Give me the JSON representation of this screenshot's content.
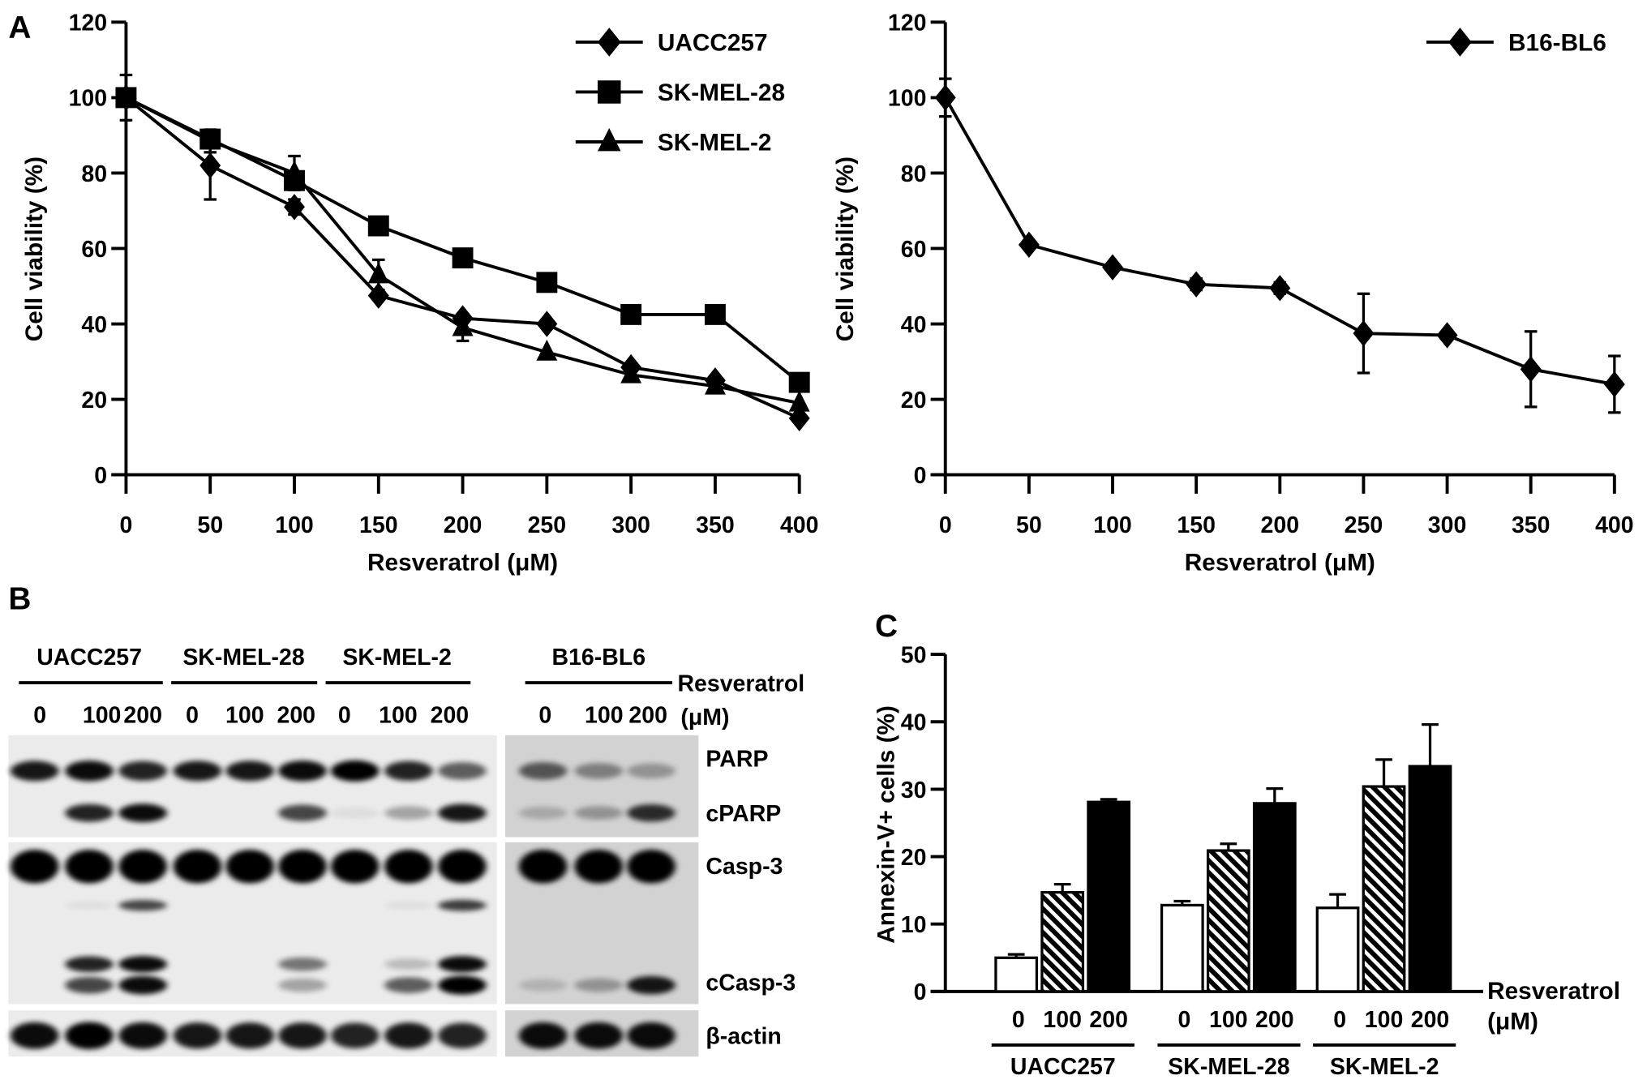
{
  "panels": {
    "a": "A",
    "b": "B",
    "c": "C"
  },
  "chart_data": [
    {
      "type": "line",
      "x": [
        0,
        50,
        100,
        150,
        200,
        250,
        300,
        350,
        400
      ],
      "xlabel": "Resveratrol (μM)",
      "ylabel": "Cell viability (%)",
      "xlim": [
        0,
        400
      ],
      "ylim": [
        0,
        120
      ],
      "yticks": [
        0,
        20,
        40,
        60,
        80,
        100,
        120
      ],
      "legend_position": "top-right",
      "series": [
        {
          "name": "UACC257",
          "marker": "diamond",
          "values": [
            100,
            82,
            71,
            47.5,
            41.5,
            40,
            28.5,
            25,
            15
          ],
          "errors": [
            6,
            9,
            2,
            1,
            1,
            1,
            1,
            1,
            1
          ]
        },
        {
          "name": "SK-MEL-28",
          "marker": "square",
          "values": [
            100,
            89,
            78,
            66,
            57.5,
            51,
            42.5,
            42.5,
            24.5
          ],
          "errors": [
            1,
            2,
            2,
            1,
            1,
            1,
            1,
            1,
            1
          ]
        },
        {
          "name": "SK-MEL-2",
          "marker": "triangle",
          "values": [
            100,
            88.5,
            80,
            53,
            39,
            32.5,
            26.5,
            23.5,
            19
          ],
          "errors": [
            1,
            3,
            4.5,
            4,
            3.5,
            1,
            1,
            1,
            1
          ]
        }
      ]
    },
    {
      "type": "line",
      "x": [
        0,
        50,
        100,
        150,
        200,
        250,
        300,
        350,
        400
      ],
      "xlabel": "Resveratrol (μM)",
      "ylabel": "Cell viability (%)",
      "xlim": [
        0,
        400
      ],
      "ylim": [
        0,
        120
      ],
      "yticks": [
        0,
        20,
        40,
        60,
        80,
        100,
        120
      ],
      "legend_position": "top-right",
      "series": [
        {
          "name": "B16-BL6",
          "marker": "diamond",
          "values": [
            100,
            61,
            55,
            50.5,
            49.5,
            37.5,
            37,
            28,
            24
          ],
          "errors": [
            5,
            1,
            1,
            1.5,
            1.5,
            10.5,
            1,
            10,
            7.5
          ]
        }
      ]
    },
    {
      "type": "bar",
      "ylabel": "Annexin-V+ cells (%)",
      "xlabel": "Resveratrol",
      "xlabel_unit": "(μM)",
      "ylim": [
        0,
        50
      ],
      "yticks": [
        0,
        10,
        20,
        30,
        40,
        50
      ],
      "doses": [
        "0",
        "100",
        "200"
      ],
      "dose_fills": [
        "white",
        "hatched",
        "black"
      ],
      "groups": [
        {
          "name": "UACC257",
          "values": [
            5,
            14.7,
            28.1
          ],
          "errors": [
            0.5,
            1.2,
            0.4
          ]
        },
        {
          "name": "SK-MEL-28",
          "values": [
            12.8,
            20.9,
            27.9
          ],
          "errors": [
            0.6,
            1.0,
            2.2
          ]
        },
        {
          "name": "SK-MEL-2",
          "values": [
            12.4,
            30.4,
            33.4
          ],
          "errors": [
            2.0,
            4.0,
            6.2
          ]
        }
      ]
    }
  ],
  "blot": {
    "cell_lines": [
      "UACC257",
      "SK-MEL-28",
      "SK-MEL-2",
      "B16-BL6"
    ],
    "treatment_label": "Resveratrol",
    "unit_label": "(μM)",
    "doses": [
      "0",
      "100",
      "200"
    ],
    "row_labels": [
      "PARP",
      "cPARP",
      "Casp-3",
      "cCasp-3",
      "β-actin"
    ],
    "band_intensity": {
      "PARP": {
        "left": [
          0.9,
          0.95,
          0.85,
          0.9,
          0.9,
          0.95,
          1,
          0.85,
          0.6
        ]
      },
      "cPARP": {
        "left": [
          0,
          0.85,
          0.95,
          0,
          0,
          0.7,
          0.05,
          0.3,
          0.9
        ]
      },
      "Casp-3": {
        "left": [
          1,
          1,
          1,
          1,
          1,
          1,
          1,
          1,
          1
        ],
        "right": [
          1,
          1,
          1
        ]
      },
      "Casp-3-intermediate": {
        "left": [
          0,
          0.05,
          0.7,
          0,
          0,
          0,
          0,
          0.05,
          0.75
        ],
        "right": [
          0,
          0,
          0
        ]
      },
      "cCasp-3-upper": {
        "left": [
          0,
          0.85,
          0.95,
          0,
          0,
          0.5,
          0,
          0.2,
          0.95
        ],
        "right": [
          0,
          0,
          0
        ]
      },
      "cCasp-3-lower": {
        "left": [
          0,
          0.7,
          0.95,
          0,
          0,
          0.3,
          0,
          0.6,
          1
        ]
      },
      "beta-actin": {
        "left": [
          0.95,
          1,
          0.95,
          0.9,
          0.9,
          0.9,
          0.85,
          0.9,
          0.85
        ]
      }
    }
  }
}
